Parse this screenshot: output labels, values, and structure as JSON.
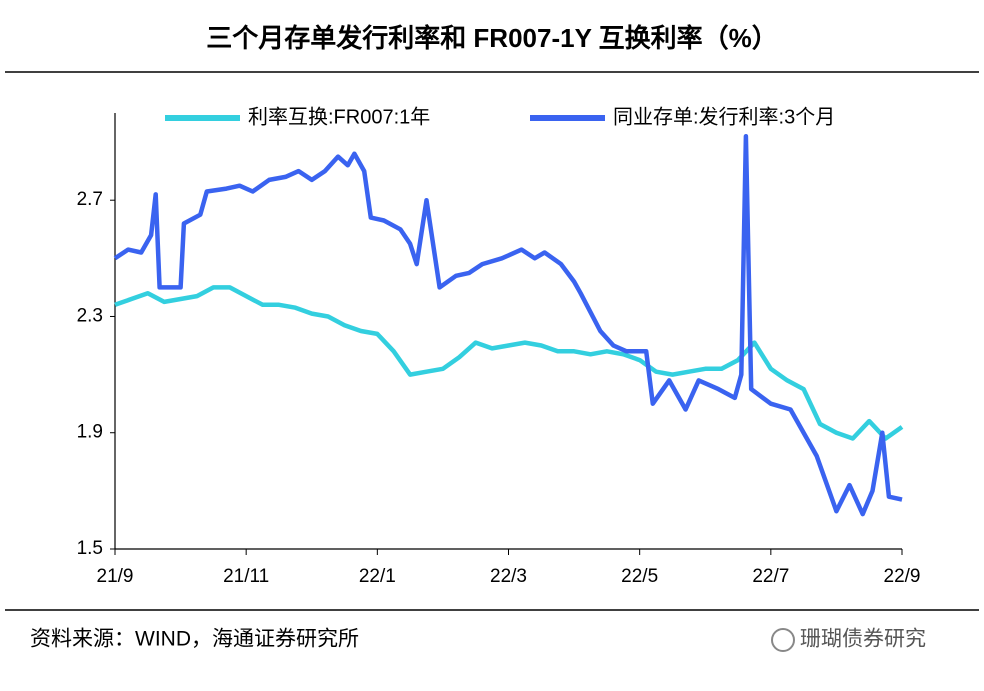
{
  "chart_data": {
    "type": "line",
    "title": "三个月存单发行利率和 FR007-1Y 互换利率（%）",
    "source": "资料来源：WIND，海通证券研究所",
    "watermark": "珊瑚债券研究",
    "xlim": [
      0,
      12
    ],
    "xticks": [
      {
        "value": 0,
        "label": "21/9"
      },
      {
        "value": 2,
        "label": "21/11"
      },
      {
        "value": 4,
        "label": "22/1"
      },
      {
        "value": 6,
        "label": "22/3"
      },
      {
        "value": 8,
        "label": "22/5"
      },
      {
        "value": 10,
        "label": "22/7"
      },
      {
        "value": 12,
        "label": "22/9"
      }
    ],
    "ylim": [
      1.5,
      3.0
    ],
    "yticks": [
      1.5,
      1.9,
      2.3,
      2.7
    ],
    "grid": false,
    "legend": "top",
    "series": [
      {
        "name": "利率互换:FR007:1年",
        "color": "#33cfdf",
        "x": [
          0,
          0.25,
          0.5,
          0.75,
          1,
          1.25,
          1.5,
          1.75,
          2,
          2.25,
          2.5,
          2.75,
          3,
          3.25,
          3.5,
          3.75,
          4,
          4.25,
          4.5,
          4.75,
          5,
          5.25,
          5.5,
          5.75,
          6,
          6.25,
          6.5,
          6.75,
          7,
          7.25,
          7.5,
          7.75,
          8,
          8.25,
          8.5,
          8.75,
          9,
          9.25,
          9.5,
          9.75,
          10,
          10.25,
          10.5,
          10.75,
          11,
          11.25,
          11.5,
          11.75,
          12
        ],
        "values": [
          2.34,
          2.36,
          2.38,
          2.35,
          2.36,
          2.37,
          2.4,
          2.4,
          2.37,
          2.34,
          2.34,
          2.33,
          2.31,
          2.3,
          2.27,
          2.25,
          2.24,
          2.18,
          2.1,
          2.11,
          2.12,
          2.16,
          2.21,
          2.19,
          2.2,
          2.21,
          2.2,
          2.18,
          2.18,
          2.17,
          2.18,
          2.17,
          2.15,
          2.11,
          2.1,
          2.11,
          2.12,
          2.12,
          2.15,
          2.21,
          2.12,
          2.08,
          2.05,
          1.93,
          1.9,
          1.88,
          1.94,
          1.88,
          1.92
        ]
      },
      {
        "name": "同业存单:发行利率:3个月",
        "color": "#3a63f0",
        "x": [
          0,
          0.2,
          0.4,
          0.55,
          0.62,
          0.68,
          1.0,
          1.05,
          1.3,
          1.4,
          1.7,
          1.9,
          2.1,
          2.35,
          2.6,
          2.8,
          3.0,
          3.2,
          3.4,
          3.55,
          3.65,
          3.8,
          3.9,
          4.1,
          4.35,
          4.5,
          4.6,
          4.75,
          4.95,
          5.2,
          5.4,
          5.6,
          5.9,
          6.2,
          6.4,
          6.55,
          6.8,
          7.0,
          7.1,
          7.4,
          7.6,
          7.8,
          8.1,
          8.2,
          8.45,
          8.7,
          8.9,
          9.2,
          9.45,
          9.55,
          9.62,
          9.7,
          10.0,
          10.3,
          10.45,
          10.7,
          11.0,
          11.2,
          11.4,
          11.55,
          11.7,
          11.8,
          12.0
        ],
        "values": [
          2.5,
          2.53,
          2.52,
          2.58,
          2.72,
          2.4,
          2.4,
          2.62,
          2.65,
          2.73,
          2.74,
          2.75,
          2.73,
          2.77,
          2.78,
          2.8,
          2.77,
          2.8,
          2.85,
          2.82,
          2.86,
          2.8,
          2.64,
          2.63,
          2.6,
          2.55,
          2.48,
          2.7,
          2.4,
          2.44,
          2.45,
          2.48,
          2.5,
          2.53,
          2.5,
          2.52,
          2.48,
          2.42,
          2.38,
          2.25,
          2.2,
          2.18,
          2.18,
          2.0,
          2.08,
          1.98,
          2.08,
          2.05,
          2.02,
          2.1,
          2.92,
          2.05,
          2.0,
          1.98,
          1.92,
          1.82,
          1.63,
          1.72,
          1.62,
          1.7,
          1.9,
          1.68,
          1.67
        ]
      }
    ]
  }
}
